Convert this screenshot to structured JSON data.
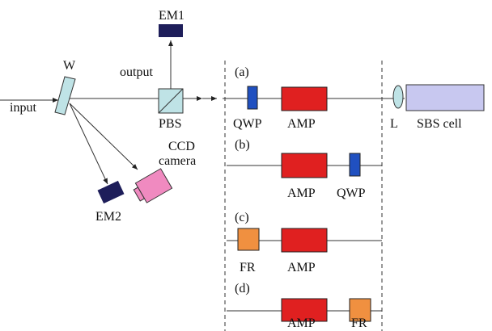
{
  "diagram": {
    "source": {
      "input": "input",
      "plate": "W",
      "splitter": "PBS",
      "output": "output",
      "em1": "EM1",
      "em2": "EM2",
      "ccd": [
        "CCD",
        "camera"
      ]
    },
    "configs": [
      {
        "tag": "(a)",
        "labels": [
          "QWP",
          "AMP",
          "L",
          "SBS cell"
        ]
      },
      {
        "tag": "(b)",
        "labels": [
          "AMP",
          "QWP"
        ]
      },
      {
        "tag": "(c)",
        "labels": [
          "FR",
          "AMP"
        ]
      },
      {
        "tag": "(d)",
        "labels": [
          "AMP",
          "FR"
        ]
      }
    ]
  }
}
